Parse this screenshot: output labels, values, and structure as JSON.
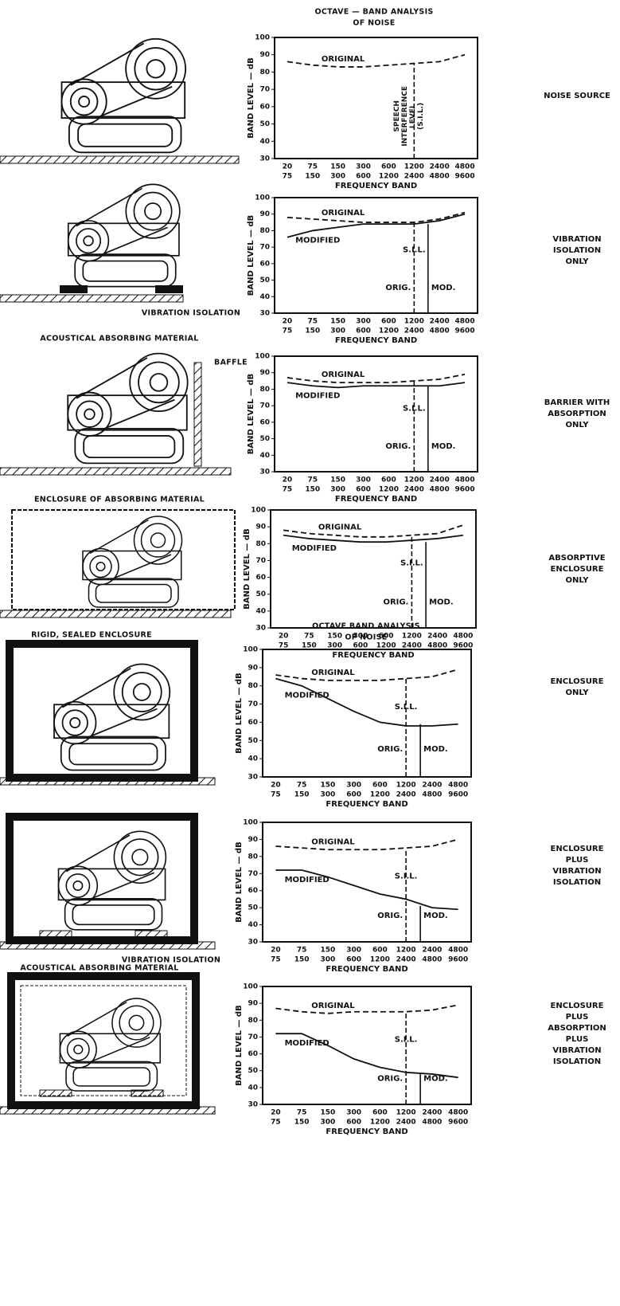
{
  "chart_data": [
    {
      "type": "line",
      "title": [
        "OCTAVE — BAND ANALYSIS",
        "OF NOISE"
      ],
      "ylabel": "BAND LEVEL — dB",
      "xlabel": "FREQUENCY BAND",
      "categories_low": [
        20,
        75,
        150,
        300,
        600,
        1200,
        2400,
        4800
      ],
      "categories_high": [
        75,
        150,
        300,
        600,
        1200,
        2400,
        4800,
        9600
      ],
      "ylim": [
        30,
        100
      ],
      "yticks": [
        30,
        40,
        50,
        60,
        70,
        80,
        90,
        100
      ],
      "series": [
        {
          "name": "ORIGINAL",
          "color": "#111",
          "dashed": true,
          "values": [
            86,
            84,
            83,
            83,
            84,
            85,
            86,
            90
          ]
        }
      ],
      "sil": {
        "label": [
          "SPEECH",
          "INTERFERENCE",
          "LEVEL",
          "(S.I.L.)"
        ],
        "original": 85
      },
      "side_label": [
        "NOISE SOURCE"
      ],
      "captions": []
    },
    {
      "type": "line",
      "ylabel": "BAND LEVEL — dB",
      "xlabel": "FREQUENCY BAND",
      "categories_low": [
        20,
        75,
        150,
        300,
        600,
        1200,
        2400,
        4800
      ],
      "categories_high": [
        75,
        150,
        300,
        600,
        1200,
        2400,
        4800,
        9600
      ],
      "ylim": [
        30,
        100
      ],
      "yticks": [
        30,
        40,
        50,
        60,
        70,
        80,
        90,
        100
      ],
      "series": [
        {
          "name": "ORIGINAL",
          "color": "#111",
          "dashed": true,
          "values": [
            88,
            87,
            86,
            85,
            85,
            85,
            87,
            91
          ]
        },
        {
          "name": "MODIFIED",
          "color": "#111",
          "dashed": false,
          "values": [
            76,
            80,
            82,
            84,
            84,
            84,
            86,
            90
          ]
        }
      ],
      "sil": {
        "label": [
          "S.I.L."
        ],
        "original": 85,
        "modified": 84,
        "orig_label": "ORIG.",
        "mod_label": "MOD."
      },
      "side_label": [
        "VIBRATION",
        "ISOLATION",
        "ONLY"
      ],
      "captions": [
        "VIBRATION ISOLATION"
      ]
    },
    {
      "type": "line",
      "ylabel": "BAND LEVEL — dB",
      "xlabel": "FREQUENCY BAND",
      "categories_low": [
        20,
        75,
        150,
        300,
        600,
        1200,
        2400,
        4800
      ],
      "categories_high": [
        75,
        150,
        300,
        600,
        1200,
        2400,
        4800,
        9600
      ],
      "ylim": [
        30,
        100
      ],
      "yticks": [
        30,
        40,
        50,
        60,
        70,
        80,
        90,
        100
      ],
      "series": [
        {
          "name": "ORIGINAL",
          "color": "#111",
          "dashed": true,
          "values": [
            87,
            85,
            84,
            84,
            84,
            85,
            86,
            89
          ]
        },
        {
          "name": "MODIFIED",
          "color": "#111",
          "dashed": false,
          "values": [
            84,
            82,
            81,
            82,
            82,
            82,
            82,
            84
          ]
        }
      ],
      "sil": {
        "label": [
          "S.I.L."
        ],
        "original": 85,
        "modified": 82,
        "orig_label": "ORIG.",
        "mod_label": "MOD."
      },
      "side_label": [
        "BARRIER WITH",
        "ABSORPTION",
        "ONLY"
      ],
      "captions": [
        "ACOUSTICAL ABSORBING MATERIAL",
        "BAFFLE"
      ]
    },
    {
      "type": "line",
      "ylabel": "BAND LEVEL — dB",
      "xlabel": "FREQUENCY BAND",
      "categories_low": [
        20,
        75,
        150,
        300,
        600,
        1200,
        2400,
        4800
      ],
      "categories_high": [
        75,
        150,
        300,
        600,
        1200,
        2400,
        4800,
        9600
      ],
      "ylim": [
        30,
        100
      ],
      "yticks": [
        30,
        40,
        50,
        60,
        70,
        80,
        90,
        100
      ],
      "series": [
        {
          "name": "ORIGINAL",
          "color": "#111",
          "dashed": true,
          "values": [
            88,
            86,
            85,
            84,
            84,
            85,
            86,
            91
          ]
        },
        {
          "name": "MODIFIED",
          "color": "#111",
          "dashed": false,
          "values": [
            85,
            83,
            82,
            81,
            81,
            82,
            83,
            85
          ]
        }
      ],
      "sil": {
        "label": [
          "S.I.L."
        ],
        "original": 85,
        "modified": 81,
        "orig_label": "ORIG.",
        "mod_label": "MOD."
      },
      "side_label": [
        "ABSORPTIVE",
        "ENCLOSURE",
        "ONLY"
      ],
      "captions": [
        "ENCLOSURE OF ABSORBING MATERIAL"
      ]
    },
    {
      "type": "line",
      "title": [
        "OCTAVE BAND ANALYSIS",
        "OF NOISE"
      ],
      "ylabel": "BAND LEVEL — dB",
      "xlabel": "FREQUENCY BAND",
      "categories_low": [
        20,
        75,
        150,
        300,
        600,
        1200,
        2400,
        4800
      ],
      "categories_high": [
        75,
        150,
        300,
        600,
        1200,
        2400,
        4800,
        9600
      ],
      "ylim": [
        30,
        100
      ],
      "yticks": [
        30,
        40,
        50,
        60,
        70,
        80,
        90,
        100
      ],
      "series": [
        {
          "name": "ORIGINAL",
          "color": "#111",
          "dashed": true,
          "values": [
            86,
            84,
            83,
            83,
            83,
            84,
            85,
            89
          ]
        },
        {
          "name": "MODIFIED",
          "color": "#111",
          "dashed": false,
          "values": [
            84,
            80,
            73,
            66,
            60,
            58,
            58,
            59
          ]
        }
      ],
      "sil": {
        "label": [
          "S.I.L."
        ],
        "original": 84,
        "modified": 59,
        "orig_label": "ORIG.",
        "mod_label": "MOD."
      },
      "side_label": [
        "ENCLOSURE",
        "ONLY"
      ],
      "captions": [
        "RIGID, SEALED ENCLOSURE"
      ]
    },
    {
      "type": "line",
      "ylabel": "BAND LEVEL — dB",
      "xlabel": "FREQUENCY BAND",
      "categories_low": [
        20,
        75,
        150,
        300,
        600,
        1200,
        2400,
        4800
      ],
      "categories_high": [
        75,
        150,
        300,
        600,
        1200,
        2400,
        4800,
        9600
      ],
      "ylim": [
        30,
        100
      ],
      "yticks": [
        30,
        40,
        50,
        60,
        70,
        80,
        90,
        100
      ],
      "series": [
        {
          "name": "ORIGINAL",
          "color": "#111",
          "dashed": true,
          "values": [
            86,
            85,
            84,
            84,
            84,
            85,
            86,
            90
          ]
        },
        {
          "name": "MODIFIED",
          "color": "#111",
          "dashed": false,
          "values": [
            72,
            72,
            68,
            63,
            58,
            55,
            50,
            49
          ]
        }
      ],
      "sil": {
        "label": [
          "S.I.L."
        ],
        "original": 84,
        "modified": 51,
        "orig_label": "ORIG.",
        "mod_label": "MOD."
      },
      "side_label": [
        "ENCLOSURE",
        "PLUS",
        "VIBRATION",
        "ISOLATION"
      ],
      "captions": [
        "VIBRATION ISOLATION"
      ]
    },
    {
      "type": "line",
      "ylabel": "BAND LEVEL — dB",
      "xlabel": "FREQUENCY BAND",
      "categories_low": [
        20,
        75,
        150,
        300,
        600,
        1200,
        2400,
        4800
      ],
      "categories_high": [
        75,
        150,
        300,
        600,
        1200,
        2400,
        4800,
        9600
      ],
      "ylim": [
        30,
        100
      ],
      "yticks": [
        30,
        40,
        50,
        60,
        70,
        80,
        90,
        100
      ],
      "series": [
        {
          "name": "ORIGINAL",
          "color": "#111",
          "dashed": true,
          "values": [
            87,
            85,
            84,
            85,
            85,
            85,
            86,
            89
          ]
        },
        {
          "name": "MODIFIED",
          "color": "#111",
          "dashed": false,
          "values": [
            72,
            72,
            65,
            57,
            52,
            49,
            48,
            46
          ]
        }
      ],
      "sil": {
        "label": [
          "S.I.L."
        ],
        "original": 84,
        "modified": 48,
        "orig_label": "ORIG.",
        "mod_label": "MOD."
      },
      "side_label": [
        "ENCLOSURE",
        "PLUS",
        "ABSORPTION",
        "PLUS",
        "VIBRATION",
        "ISOLATION"
      ],
      "captions": [
        "ACOUSTICAL ABSORBING MATERIAL"
      ]
    }
  ]
}
